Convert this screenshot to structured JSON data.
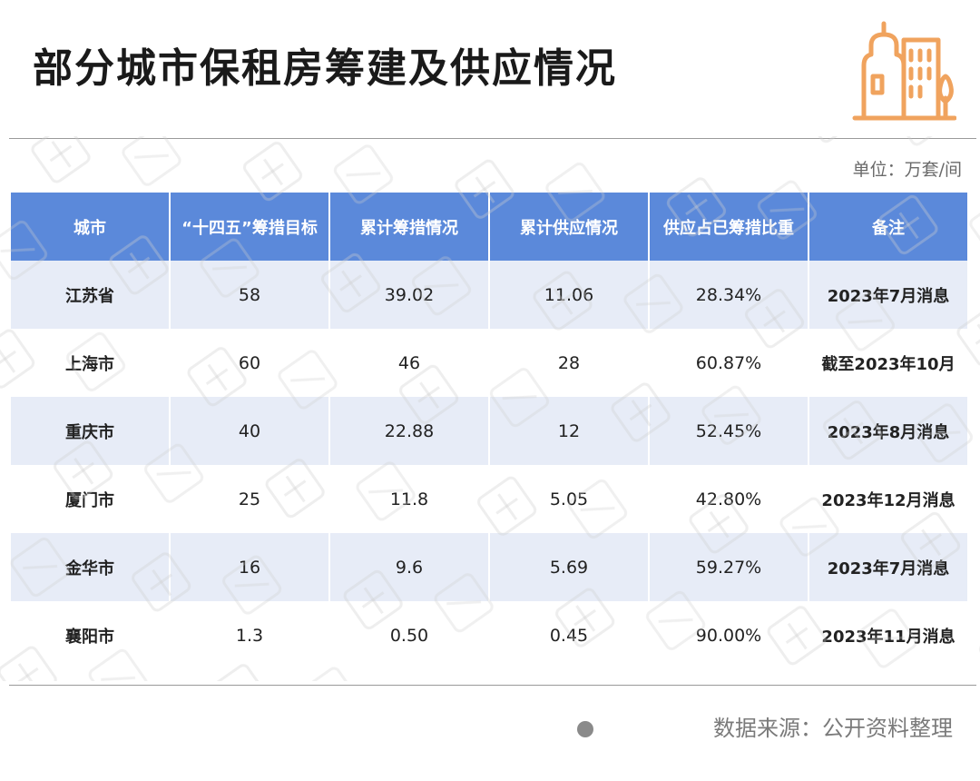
{
  "title": "部分城市保租房筹建及供应情况",
  "unit": "单位：万套/间",
  "icons": {
    "logo": "building-icon",
    "source_marker": "dot-icon"
  },
  "colors": {
    "header_bg": "#5b89da",
    "stripe_bg": "#e7ecf7",
    "icon_orange": "#f0a35e"
  },
  "table": {
    "headers": [
      "城市",
      "“十四五”筹措目标",
      "累计筹措情况",
      "累计供应情况",
      "供应占已筹措比重",
      "备注"
    ],
    "rows": [
      [
        "江苏省",
        "58",
        "39.02",
        "11.06",
        "28.34%",
        "2023年7月消息"
      ],
      [
        "上海市",
        "60",
        "46",
        "28",
        "60.87%",
        "截至2023年10月"
      ],
      [
        "重庆市",
        "40",
        "22.88",
        "12",
        "52.45%",
        "2023年8月消息"
      ],
      [
        "厦门市",
        "25",
        "11.8",
        "5.05",
        "42.80%",
        "2023年12月消息"
      ],
      [
        "金华市",
        "16",
        "9.6",
        "5.69",
        "59.27%",
        "2023年7月消息"
      ],
      [
        "襄阳市",
        "1.3",
        "0.50",
        "0.45",
        "90.00%",
        "2023年11月消息"
      ]
    ]
  },
  "source": "数据来源：公开资料整理"
}
